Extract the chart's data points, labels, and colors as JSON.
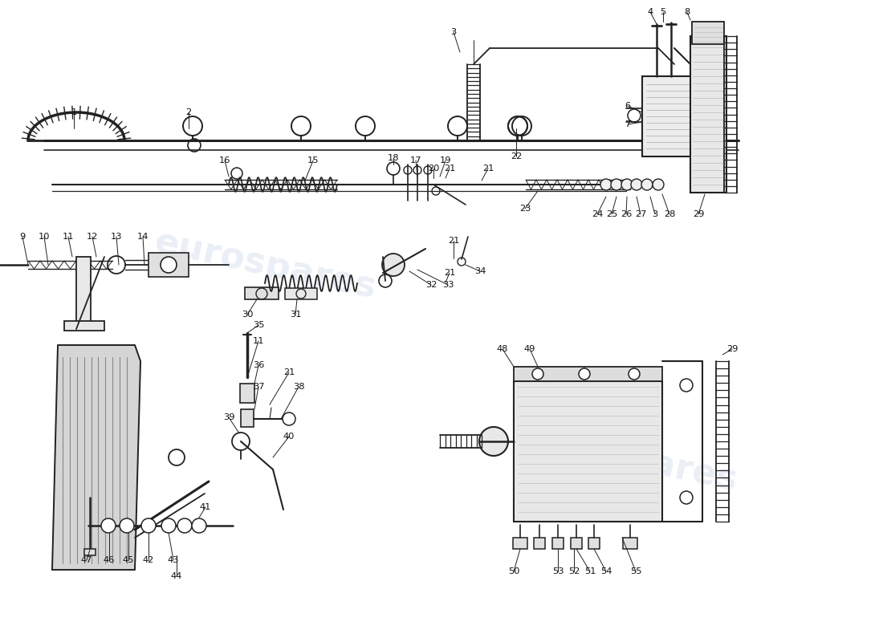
{
  "background_color": "#ffffff",
  "line_color": "#222222",
  "watermark_text": "eurospares",
  "watermark_color": "#c8d4e8",
  "watermark_alpha": 0.38,
  "fig_width": 11.0,
  "fig_height": 8.0,
  "dpi": 100
}
